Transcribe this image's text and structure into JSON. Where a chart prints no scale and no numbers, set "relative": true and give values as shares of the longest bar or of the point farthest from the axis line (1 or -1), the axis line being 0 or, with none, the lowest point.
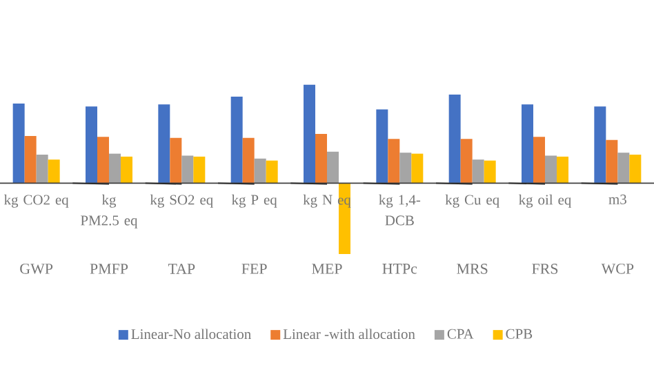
{
  "chart_data": {
    "type": "bar",
    "relative": true,
    "legend": "bottom",
    "categories": [
      "GWP",
      "PMFP",
      "TAP",
      "FEP",
      "MEP",
      "HTPc",
      "MRS",
      "FRS",
      "WCP"
    ],
    "series": [
      {
        "name": "Linear-No allocation",
        "color": "#4472c4",
        "values": [
          0.81,
          0.78,
          0.8,
          0.88,
          1.0,
          0.75,
          0.9,
          0.8,
          0.78
        ]
      },
      {
        "name": "Linear -with allocation",
        "color": "#ed7d31",
        "values": [
          0.48,
          0.47,
          0.46,
          0.46,
          0.5,
          0.45,
          0.45,
          0.47,
          0.44
        ]
      },
      {
        "name": "CPA",
        "color": "#a5a5a5",
        "values": [
          0.29,
          0.3,
          0.28,
          0.25,
          0.32,
          0.31,
          0.24,
          0.28,
          0.31
        ]
      },
      {
        "name": "CPB",
        "color": "#ffc000",
        "values": [
          0.24,
          0.27,
          0.27,
          0.23,
          -0.72,
          0.3,
          0.23,
          0.27,
          0.29
        ]
      }
    ],
    "annotations": [
      "kg CO2 eq",
      "kg PM2.5 eq",
      "kg SO2 eq",
      "kg P eq",
      "kg N eq",
      "kg 1,4-DCB",
      "kg Cu eq",
      "kg oil eq",
      "m3"
    ]
  }
}
